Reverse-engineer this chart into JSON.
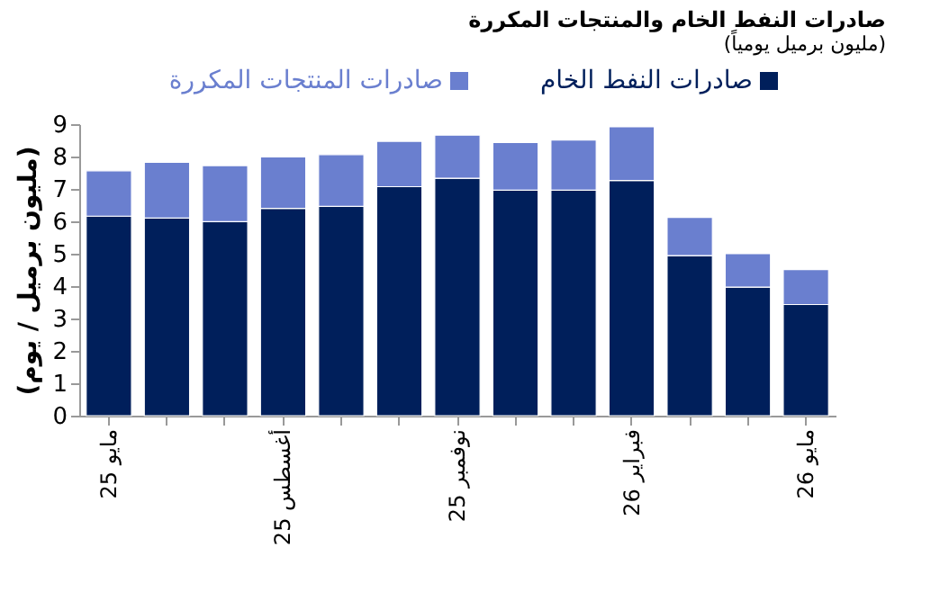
{
  "chart_data": {
    "type": "bar",
    "title": "صادرات النفط الخام والمنتجات المكررة",
    "subtitle": "(مليون برميل يومياً)",
    "ylabel": "(مليون برميل / يوم)",
    "categories": [
      "مايو 25",
      null,
      null,
      "أغسطس 25",
      null,
      null,
      "نوفمبر 25",
      null,
      null,
      "فبراير 26",
      null,
      null,
      "مايو 26"
    ],
    "stacked": true,
    "legend": "top",
    "grid": false,
    "ylim": [
      0,
      9
    ],
    "yticks": [
      0,
      1,
      2,
      3,
      4,
      5,
      6,
      7,
      8,
      9
    ],
    "series": [
      {
        "name": "صادرات النفط الخام",
        "color": "#001f5b",
        "values": [
          6.16,
          6.1,
          5.99,
          6.4,
          6.46,
          7.07,
          7.33,
          6.96,
          6.96,
          7.26,
          4.94,
          3.97,
          3.43
        ]
      },
      {
        "name": "صادرات المنتجات المكررة",
        "color": "#6a7fcf",
        "values": [
          1.4,
          1.72,
          1.73,
          1.59,
          1.6,
          1.4,
          1.33,
          1.47,
          1.55,
          1.66,
          1.18,
          1.03,
          1.08
        ]
      }
    ]
  }
}
